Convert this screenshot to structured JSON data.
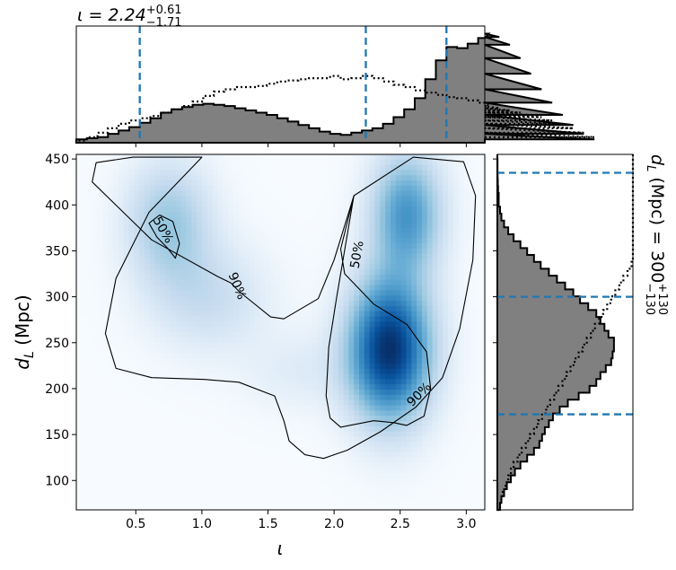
{
  "chart_data": {
    "type": "heatmap",
    "title": "ι = 2.24",
    "title_sup": "+0.61",
    "title_sub": "−1.71",
    "xlabel": "ι",
    "ylabel_main": "d",
    "ylabel_sub": "L",
    "ylabel_unit": " (Mpc)",
    "right_label": "d",
    "right_label_sub": "L",
    "right_label_rest": " (Mpc) = 300",
    "right_label_sup": "+130",
    "right_label_lo": "−130",
    "xlim": [
      0.05,
      3.14
    ],
    "ylim": [
      68,
      455
    ],
    "x_ticks": [
      0.5,
      1.0,
      1.5,
      2.0,
      2.5,
      3.0
    ],
    "x_tick_labels": [
      "0.5",
      "1.0",
      "1.5",
      "2.0",
      "2.5",
      "3.0"
    ],
    "y_ticks": [
      100,
      150,
      200,
      250,
      300,
      350,
      400,
      450
    ],
    "y_tick_labels": [
      "100",
      "150",
      "200",
      "250",
      "300",
      "350",
      "400",
      "450"
    ],
    "colormap": "Blues",
    "density_modes": [
      {
        "x": 2.42,
        "y": 243,
        "sx": 0.21,
        "sy": 52,
        "w": 1.0
      },
      {
        "x": 2.55,
        "y": 390,
        "sx": 0.18,
        "sy": 45,
        "w": 0.55
      },
      {
        "x": 0.75,
        "y": 380,
        "sx": 0.22,
        "sy": 45,
        "w": 0.32
      },
      {
        "x": 1.05,
        "y": 300,
        "sx": 0.3,
        "sy": 40,
        "w": 0.18
      },
      {
        "x": 1.75,
        "y": 220,
        "sx": 0.3,
        "sy": 30,
        "w": 0.08
      }
    ],
    "contours": [
      {
        "label": "90%",
        "x": [
          1.0,
          0.48,
          0.2,
          0.17,
          0.62,
          1.12,
          1.22,
          1.28,
          1.52,
          1.62,
          1.88,
          2.0,
          2.15,
          2.6,
          2.98,
          3.07,
          3.05,
          2.95,
          2.82,
          2.62,
          2.35,
          2.1,
          1.92,
          1.78,
          1.66,
          1.62,
          1.55,
          1.28,
          1.02,
          0.62,
          0.35,
          0.27,
          0.35,
          0.6,
          1.0
        ],
        "y": [
          452,
          452,
          446,
          425,
          362,
          322,
          315,
          306,
          278,
          276,
          298,
          340,
          410,
          452,
          447,
          410,
          340,
          265,
          212,
          180,
          153,
          133,
          124,
          128,
          143,
          165,
          192,
          207,
          210,
          212,
          222,
          260,
          320,
          392,
          452
        ]
      },
      {
        "label": "50%",
        "x": [
          2.15,
          2.05,
          2.08,
          2.3,
          2.55,
          2.7,
          2.73,
          2.68,
          2.55,
          2.45,
          2.3,
          2.05,
          1.97,
          1.94,
          1.96,
          2.02,
          2.15
        ],
        "y": [
          410,
          352,
          325,
          292,
          270,
          240,
          200,
          170,
          160,
          163,
          165,
          158,
          168,
          192,
          245,
          300,
          410
        ]
      },
      {
        "label": "50%",
        "x": [
          0.6,
          0.68,
          0.78,
          0.83,
          0.8,
          0.74,
          0.66,
          0.6
        ],
        "y": [
          380,
          389,
          382,
          358,
          342,
          353,
          365,
          380
        ]
      }
    ],
    "contour_label_positions": [
      {
        "text": "50%",
        "x": 0.71,
        "y": 373,
        "angle": 60
      },
      {
        "text": "90%",
        "x": 1.27,
        "y": 312,
        "angle": 68
      },
      {
        "text": "50%",
        "x": 2.17,
        "y": 346,
        "angle": -80
      },
      {
        "text": "90%",
        "x": 2.64,
        "y": 194,
        "angle": -45
      }
    ],
    "top_hist": {
      "bin_width": 0.08,
      "x_start": 0.05,
      "ymax": 1.0,
      "posterior": [
        0.03,
        0.04,
        0.05,
        0.08,
        0.11,
        0.14,
        0.18,
        0.22,
        0.27,
        0.3,
        0.32,
        0.34,
        0.35,
        0.34,
        0.33,
        0.31,
        0.29,
        0.27,
        0.25,
        0.22,
        0.19,
        0.16,
        0.13,
        0.1,
        0.08,
        0.07,
        0.09,
        0.11,
        0.13,
        0.17,
        0.23,
        0.3,
        0.4,
        0.57,
        0.74,
        0.86,
        0.85,
        0.89,
        0.94,
        0.98,
        0.95,
        0.88,
        0.76,
        0.62,
        0.48,
        0.36,
        0.25,
        0.16,
        0.08,
        0.03
      ],
      "prior": [
        0.02,
        0.05,
        0.09,
        0.13,
        0.17,
        0.2,
        0.22,
        0.24,
        0.27,
        0.3,
        0.33,
        0.37,
        0.42,
        0.46,
        0.48,
        0.5,
        0.5,
        0.51,
        0.53,
        0.55,
        0.56,
        0.57,
        0.58,
        0.58,
        0.6,
        0.57,
        0.58,
        0.6,
        0.58,
        0.55,
        0.52,
        0.5,
        0.47,
        0.45,
        0.43,
        0.41,
        0.4,
        0.38,
        0.36,
        0.33,
        0.31,
        0.29,
        0.27,
        0.25,
        0.23,
        0.2,
        0.17,
        0.13,
        0.09,
        0.05
      ],
      "quantile_lines": [
        0.53,
        2.24,
        2.85
      ]
    },
    "right_hist": {
      "bin_height": 7.5,
      "y_start": 68,
      "xmax": 1.0,
      "posterior": [
        0.02,
        0.03,
        0.05,
        0.07,
        0.1,
        0.13,
        0.17,
        0.22,
        0.27,
        0.31,
        0.33,
        0.35,
        0.38,
        0.41,
        0.46,
        0.52,
        0.6,
        0.68,
        0.73,
        0.76,
        0.8,
        0.84,
        0.85,
        0.86,
        0.86,
        0.82,
        0.79,
        0.76,
        0.73,
        0.67,
        0.61,
        0.56,
        0.5,
        0.44,
        0.38,
        0.32,
        0.27,
        0.22,
        0.17,
        0.12,
        0.08,
        0.05,
        0.03,
        0.02,
        0.01,
        0.01,
        0.005,
        0.003,
        0.002,
        0.001,
        0.001,
        0.0
      ],
      "prior": [
        0.02,
        0.03,
        0.04,
        0.06,
        0.08,
        0.1,
        0.12,
        0.15,
        0.18,
        0.21,
        0.24,
        0.27,
        0.3,
        0.33,
        0.36,
        0.39,
        0.42,
        0.45,
        0.48,
        0.51,
        0.54,
        0.57,
        0.6,
        0.63,
        0.66,
        0.69,
        0.72,
        0.75,
        0.78,
        0.81,
        0.84,
        0.87,
        0.9,
        0.93,
        0.96,
        0.99,
        1.0,
        1.0,
        1.0,
        1.0,
        1.0,
        1.0,
        1.0,
        1.0,
        1.0,
        1.0,
        1.0,
        1.0,
        1.0,
        1.0,
        1.0,
        1.0
      ],
      "quantile_lines": [
        172,
        300,
        435
      ]
    },
    "grid": false,
    "colors": {
      "hist_fill": "#808080",
      "hist_edge": "#000000",
      "quantile": "#1f77b4",
      "contour": "#000000"
    }
  }
}
